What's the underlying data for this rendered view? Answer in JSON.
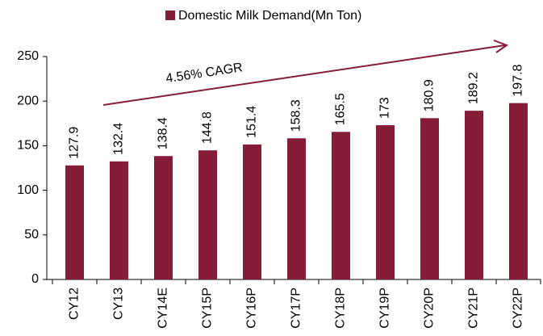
{
  "chart_data": {
    "type": "bar",
    "categories": [
      "CY12",
      "CY13",
      "CY14E",
      "CY15P",
      "CY16P",
      "CY17P",
      "CY18P",
      "CY19P",
      "CY20P",
      "CY21P",
      "CY22P"
    ],
    "series": [
      {
        "name": "Domestic Milk Demand(Mn Ton)",
        "color": "#861d38",
        "values": [
          127.9,
          132.4,
          138.4,
          144.8,
          151.4,
          158.3,
          165.5,
          173,
          180.9,
          189.2,
          197.8
        ]
      }
    ],
    "annotation": "4.56% CAGR",
    "ylim": [
      0,
      250
    ],
    "yticks": [
      0,
      50,
      100,
      150,
      200,
      250
    ],
    "grid": false
  }
}
